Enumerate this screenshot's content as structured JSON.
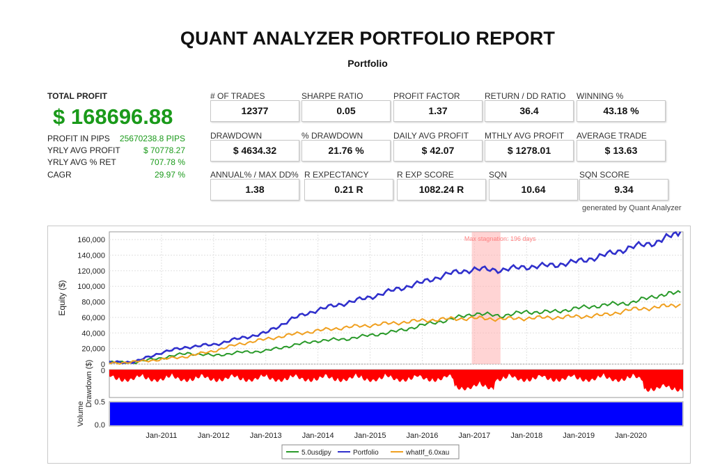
{
  "report": {
    "title": "QUANT ANALYZER PORTFOLIO REPORT",
    "subtitle": "Portfolio",
    "generated_by": "generated by Quant Analyzer"
  },
  "summary": {
    "total_profit_label": "TOTAL PROFIT",
    "total_profit_value": "$ 168696.88",
    "rows": [
      {
        "label": "PROFIT IN PIPS",
        "value": "25670238.8 PIPS"
      },
      {
        "label": "YRLY AVG PROFIT",
        "value": "$ 70778.27"
      },
      {
        "label": "YRLY AVG % RET",
        "value": "707.78 %"
      },
      {
        "label": "CAGR",
        "value": "29.97 %"
      }
    ]
  },
  "metrics": [
    {
      "label": "# OF TRADES",
      "value": "12377"
    },
    {
      "label": "SHARPE RATIO",
      "value": "0.05"
    },
    {
      "label": "PROFIT FACTOR",
      "value": "1.37"
    },
    {
      "label": "RETURN / DD RATIO",
      "value": "36.4"
    },
    {
      "label": "WINNING %",
      "value": "43.18 %"
    },
    {
      "label": "DRAWDOWN",
      "value": "$ 4634.32"
    },
    {
      "label": "% DRAWDOWN",
      "value": "21.76 %"
    },
    {
      "label": "DAILY AVG PROFIT",
      "value": "$ 42.07"
    },
    {
      "label": "MTHLY AVG PROFIT",
      "value": "$ 1278.01"
    },
    {
      "label": "AVERAGE TRADE",
      "value": "$ 13.63"
    },
    {
      "label": "ANNUAL% / MAX DD%",
      "value": "1.38"
    },
    {
      "label": "R EXPECTANCY",
      "value": "0.21 R"
    },
    {
      "label": "R EXP SCORE",
      "value": "1082.24 R"
    },
    {
      "label": "SQN",
      "value": "10.64"
    },
    {
      "label": "SQN SCORE",
      "value": "9.34"
    }
  ],
  "chart_data": {
    "type": "line",
    "ylabel": "Equity ($)",
    "ylim": [
      0,
      170000
    ],
    "y_ticks": [
      "0",
      "20,000",
      "40,000",
      "60,000",
      "80,000",
      "100,000",
      "120,000",
      "140,000",
      "160,000"
    ],
    "x_ticks": [
      "Jan-2011",
      "Jan-2012",
      "Jan-2013",
      "Jan-2014",
      "Jan-2015",
      "Jan-2016",
      "Jan-2017",
      "Jan-2018",
      "Jan-2019",
      "Jan-2020"
    ],
    "x": [
      2010.0,
      2010.5,
      2011.0,
      2011.5,
      2012.0,
      2012.5,
      2013.0,
      2013.5,
      2014.0,
      2014.5,
      2015.0,
      2015.5,
      2016.0,
      2016.5,
      2017.0,
      2017.5,
      2018.0,
      2018.5,
      2019.0,
      2019.5,
      2020.0,
      2020.5,
      2020.95
    ],
    "series": [
      {
        "name": "5.0usdjpy",
        "color": "#2a9a2a",
        "values": [
          2000,
          2500,
          8000,
          14000,
          11000,
          15000,
          17000,
          24000,
          30000,
          32000,
          37000,
          42000,
          50000,
          57000,
          65000,
          62000,
          67000,
          67000,
          72000,
          76000,
          79000,
          88000,
          92000
        ]
      },
      {
        "name": "Portfolio",
        "color": "#3030cc",
        "values": [
          2000,
          3000,
          15000,
          22000,
          25000,
          33000,
          40000,
          58000,
          70000,
          78000,
          86000,
          96000,
          105000,
          116000,
          122000,
          121000,
          125000,
          127000,
          132000,
          140000,
          150000,
          157000,
          170000
        ]
      },
      {
        "name": "whatIf_6.0xau",
        "color": "#f0a020",
        "values": [
          1000,
          3000,
          6000,
          10000,
          17000,
          26000,
          32000,
          38000,
          43000,
          47000,
          50000,
          53000,
          56000,
          58000,
          59000,
          58000,
          59000,
          60000,
          61000,
          63000,
          70000,
          73000,
          77000
        ]
      }
    ],
    "stagnation_label": "Max stagnation: 196 days",
    "stagnation_range": [
      2016.95,
      2017.5
    ],
    "drawdown_label": "Drawdown ($)",
    "drawdown_tick": "0",
    "volume_label": "Volume",
    "volume_ticks": [
      "0.5",
      "0.0"
    ]
  },
  "colors": {
    "profit_green": "#1a9a1a",
    "drawdown_red": "#ff0000",
    "volume_blue": "#0000ff",
    "stagnation_pink": "#ffb0b0"
  }
}
